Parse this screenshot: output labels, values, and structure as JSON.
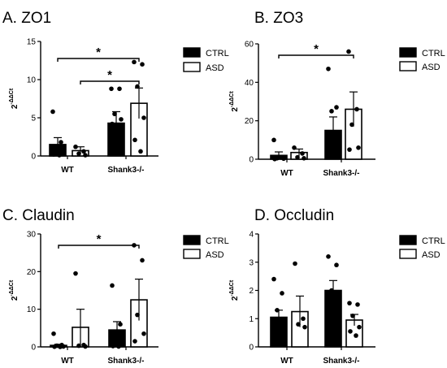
{
  "chart_data": [
    {
      "type": "bar",
      "title": "A. ZO1",
      "ylabel_base": "2",
      "ylabel_exp": "-ΔΔCt",
      "ylim": [
        0,
        15
      ],
      "yticks": [
        0,
        5,
        10,
        15
      ],
      "categories": [
        "WT",
        "Shank3-/-"
      ],
      "series": [
        {
          "name": "CTRL",
          "fill": "#000000",
          "values": [
            1.5,
            4.3
          ],
          "sem": [
            0.9,
            1.5
          ],
          "points": [
            [
              5.8,
              1.8,
              1.0,
              0.4,
              0.2,
              0.1
            ],
            [
              8.8,
              8.8,
              5.5,
              4.8,
              4.2,
              0.5
            ]
          ]
        },
        {
          "name": "ASD",
          "fill": "#ffffff",
          "values": [
            0.7,
            6.9
          ],
          "sem": [
            0.5,
            2.0
          ],
          "points": [
            [
              1.2,
              0.6,
              0.3,
              0.1
            ],
            [
              12.3,
              12.0,
              9.1,
              5.0,
              2.1,
              0.6
            ]
          ]
        }
      ],
      "significance": [
        {
          "from": [
            0,
            0
          ],
          "to": [
            1,
            1
          ],
          "label": "*"
        },
        {
          "from": [
            0,
            1
          ],
          "to": [
            1,
            1
          ],
          "label": "*"
        }
      ]
    },
    {
      "type": "bar",
      "title": "B. ZO3",
      "ylabel_base": "2",
      "ylabel_exp": "-ΔΔCt",
      "ylim": [
        0,
        60
      ],
      "yticks": [
        0,
        20,
        40,
        60
      ],
      "categories": [
        "WT",
        "Shank3-/-"
      ],
      "series": [
        {
          "name": "CTRL",
          "fill": "#000000",
          "values": [
            2.0,
            15.0
          ],
          "sem": [
            1.8,
            7.0
          ],
          "points": [
            [
              10.0,
              1.0,
              0.5,
              0.3,
              0.1
            ],
            [
              47.0,
              27.0,
              25.0,
              2.0,
              1.0
            ]
          ]
        },
        {
          "name": "ASD",
          "fill": "#ffffff",
          "values": [
            3.5,
            26.0
          ],
          "sem": [
            1.8,
            9.0
          ],
          "points": [
            [
              6.0,
              3.0,
              1.0,
              0.5
            ],
            [
              56.0,
              26.0,
              18.0,
              6.0,
              5.0
            ]
          ]
        }
      ],
      "significance": [
        {
          "from": [
            0,
            0
          ],
          "to": [
            1,
            1
          ],
          "label": "*"
        }
      ]
    },
    {
      "type": "bar",
      "title": "C. Claudin",
      "ylabel_base": "2",
      "ylabel_exp": "-ΔΔCt",
      "ylim": [
        0,
        30
      ],
      "yticks": [
        0,
        10,
        20,
        30
      ],
      "categories": [
        "WT",
        "Shank3-/-"
      ],
      "series": [
        {
          "name": "CTRL",
          "fill": "#000000",
          "values": [
            0.4,
            4.5
          ],
          "sem": [
            0.3,
            2.2
          ],
          "points": [
            [
              3.5,
              0.5,
              0.3,
              0.1,
              0.05,
              0.0
            ],
            [
              16.3,
              6.0,
              1.5,
              0.5,
              0.2,
              0.1
            ]
          ]
        },
        {
          "name": "ASD",
          "fill": "#ffffff",
          "values": [
            5.2,
            12.5
          ],
          "sem": [
            4.8,
            5.5
          ],
          "points": [
            [
              19.5,
              0.5,
              0.3,
              0.1
            ],
            [
              27.0,
              23.0,
              8.5,
              3.5,
              1.5
            ]
          ]
        }
      ],
      "significance": [
        {
          "from": [
            0,
            0
          ],
          "to": [
            1,
            1
          ],
          "label": "*"
        }
      ]
    },
    {
      "type": "bar",
      "title": "D. Occludin",
      "ylabel_base": "2",
      "ylabel_exp": "-ΔΔCt",
      "ylim": [
        0,
        4
      ],
      "yticks": [
        0,
        1,
        2,
        3,
        4
      ],
      "categories": [
        "WT",
        "Shank3-/-"
      ],
      "series": [
        {
          "name": "CTRL",
          "fill": "#000000",
          "values": [
            1.05,
            2.0
          ],
          "sem": [
            0.25,
            0.35
          ],
          "points": [
            [
              2.4,
              1.9,
              1.3,
              0.9,
              0.8
            ],
            [
              3.2,
              2.9,
              2.0,
              1.8,
              1.6
            ]
          ]
        },
        {
          "name": "ASD",
          "fill": "#ffffff",
          "values": [
            1.25,
            0.95
          ],
          "sem": [
            0.55,
            0.2
          ],
          "points": [
            [
              2.95,
              1.0,
              0.8,
              0.7
            ],
            [
              1.55,
              1.5,
              1.1,
              0.7,
              0.55,
              0.4
            ]
          ]
        }
      ],
      "significance": []
    }
  ]
}
